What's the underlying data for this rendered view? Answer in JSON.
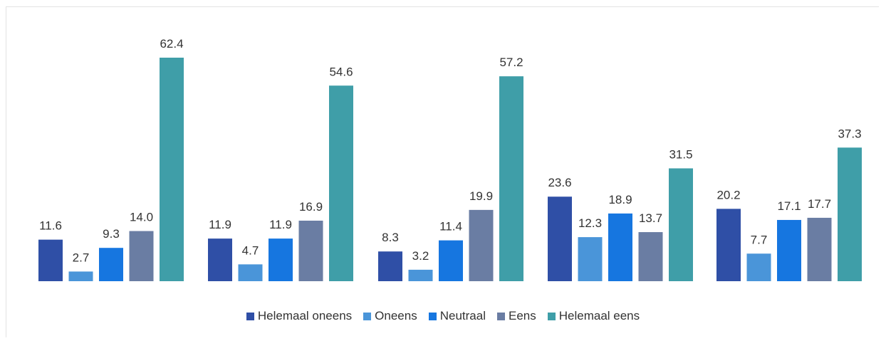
{
  "chart_data": {
    "type": "bar",
    "categories": [
      "",
      "",
      "",
      "",
      ""
    ],
    "series": [
      {
        "name": "Helemaal oneens",
        "color": "#2f4fa6",
        "values": [
          11.6,
          11.9,
          8.3,
          23.6,
          20.2
        ]
      },
      {
        "name": "Oneens",
        "color": "#4a95d9",
        "values": [
          2.7,
          4.7,
          3.2,
          12.3,
          7.7
        ]
      },
      {
        "name": "Neutraal",
        "color": "#1676e0",
        "values": [
          9.3,
          11.9,
          11.4,
          18.9,
          17.1
        ]
      },
      {
        "name": "Eens",
        "color": "#6a7da3",
        "values": [
          14.0,
          16.9,
          19.9,
          13.7,
          17.7
        ]
      },
      {
        "name": "Helemaal eens",
        "color": "#3f9ea8",
        "values": [
          62.4,
          54.6,
          57.2,
          31.5,
          37.3
        ]
      }
    ],
    "data_labels": [
      [
        "11.6",
        "11.9",
        "8.3",
        "23.6",
        "20.2"
      ],
      [
        "2.7",
        "4.7",
        "3.2",
        "12.3",
        "7.7"
      ],
      [
        "9.3",
        "11.9",
        "11.4",
        "18.9",
        "17.1"
      ],
      [
        "14.0",
        "16.9",
        "19.9",
        "13.7",
        "17.7"
      ],
      [
        "62.4",
        "54.6",
        "57.2",
        "31.5",
        "37.3"
      ]
    ],
    "title": "",
    "xlabel": "",
    "ylabel": "",
    "ylim": [
      0,
      62.4
    ],
    "grid": false,
    "legend_position": "bottom"
  }
}
